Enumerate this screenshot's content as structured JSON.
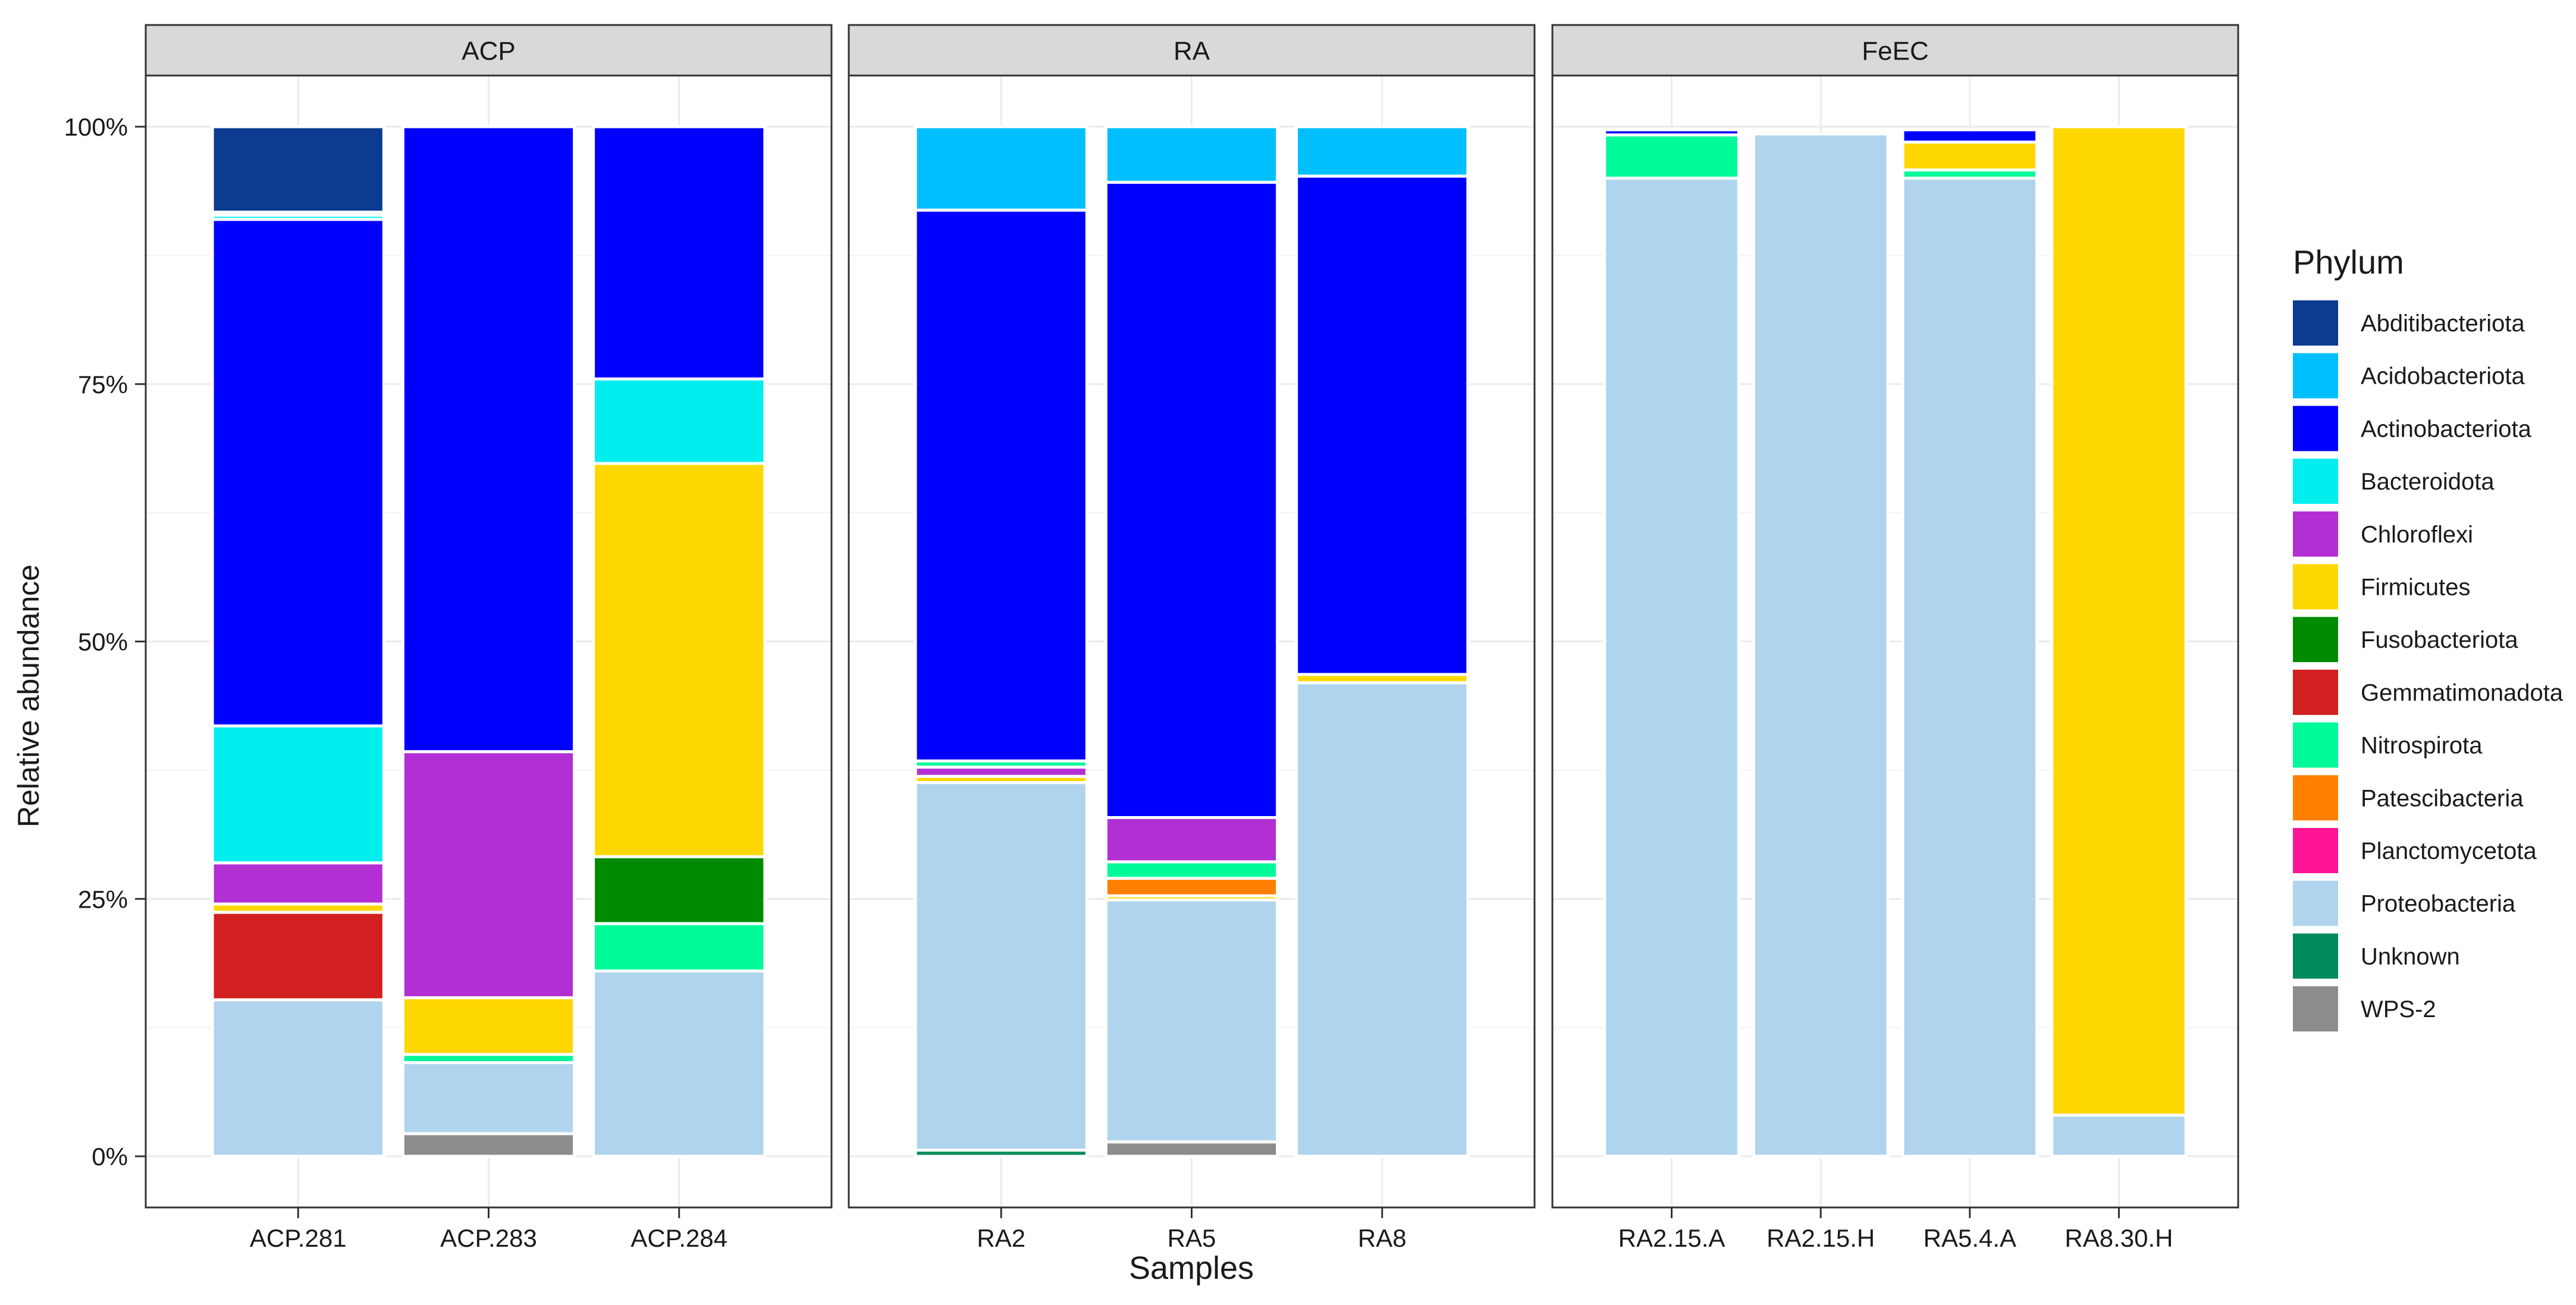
{
  "chart_data": {
    "type": "bar",
    "stacked": true,
    "xlabel": "Samples",
    "ylabel": "Relative abundance",
    "ylim": [
      0,
      1
    ],
    "yticks": [
      0,
      0.25,
      0.5,
      0.75,
      1.0
    ],
    "ytick_labels": [
      "0%",
      "25%",
      "50%",
      "75%",
      "100%"
    ],
    "legend": {
      "title": "Phylum",
      "placement": "right",
      "entries": [
        {
          "name": "Abditibacteriota",
          "color": "#0B3C8F"
        },
        {
          "name": "Acidobacteriota",
          "color": "#00BFFF"
        },
        {
          "name": "Actinobacteriota",
          "color": "#0000FF"
        },
        {
          "name": "Bacteroidota",
          "color": "#00EEEE"
        },
        {
          "name": "Chloroflexi",
          "color": "#B22FD3"
        },
        {
          "name": "Firmicutes",
          "color": "#FFD700"
        },
        {
          "name": "Fusobacteriota",
          "color": "#008B00"
        },
        {
          "name": "Gemmatimonadota",
          "color": "#D21F1F"
        },
        {
          "name": "Nitrospirota",
          "color": "#00FA9A"
        },
        {
          "name": "Patescibacteria",
          "color": "#FF7F00"
        },
        {
          "name": "Planctomycetota",
          "color": "#FF1493"
        },
        {
          "name": "Proteobacteria",
          "color": "#B0D4EE"
        },
        {
          "name": "Unknown",
          "color": "#008B5A"
        },
        {
          "name": "WPS-2",
          "color": "#8C8C8C"
        }
      ]
    },
    "panels": [
      {
        "name": "ACP",
        "samples": [
          {
            "name": "ACP.281",
            "stack": [
              {
                "phylum": "Proteobacteria",
                "value": 0.152
              },
              {
                "phylum": "Gemmatimonadota",
                "value": 0.085
              },
              {
                "phylum": "Firmicutes",
                "value": 0.008
              },
              {
                "phylum": "Chloroflexi",
                "value": 0.04
              },
              {
                "phylum": "Bacteroidota",
                "value": 0.133
              },
              {
                "phylum": "Actinobacteriota",
                "value": 0.492
              },
              {
                "phylum": "Bacteroidota",
                "value": 0.004
              },
              {
                "phylum": "Nitrospirota",
                "value": 0.003
              },
              {
                "phylum": "Abditibacteriota",
                "value": 0.083
              }
            ]
          },
          {
            "name": "ACP.283",
            "stack": [
              {
                "phylum": "WPS-2",
                "value": 0.022
              },
              {
                "phylum": "Proteobacteria",
                "value": 0.069
              },
              {
                "phylum": "Nitrospirota",
                "value": 0.008
              },
              {
                "phylum": "Firmicutes",
                "value": 0.055
              },
              {
                "phylum": "Chloroflexi",
                "value": 0.239
              },
              {
                "phylum": "Actinobacteriota",
                "value": 0.607
              }
            ]
          },
          {
            "name": "ACP.284",
            "stack": [
              {
                "phylum": "Proteobacteria",
                "value": 0.18
              },
              {
                "phylum": "Nitrospirota",
                "value": 0.046
              },
              {
                "phylum": "Fusobacteriota",
                "value": 0.065
              },
              {
                "phylum": "Firmicutes",
                "value": 0.382
              },
              {
                "phylum": "Bacteroidota",
                "value": 0.082
              },
              {
                "phylum": "Actinobacteriota",
                "value": 0.245
              }
            ]
          }
        ]
      },
      {
        "name": "RA",
        "samples": [
          {
            "name": "RA2",
            "stack": [
              {
                "phylum": "Unknown",
                "value": 0.006
              },
              {
                "phylum": "Proteobacteria",
                "value": 0.357
              },
              {
                "phylum": "Firmicutes",
                "value": 0.006
              },
              {
                "phylum": "Chloroflexi",
                "value": 0.009
              },
              {
                "phylum": "Nitrospirota",
                "value": 0.006
              },
              {
                "phylum": "Actinobacteriota",
                "value": 0.535
              },
              {
                "phylum": "Acidobacteriota",
                "value": 0.081
              }
            ]
          },
          {
            "name": "RA5",
            "stack": [
              {
                "phylum": "WPS-2",
                "value": 0.014
              },
              {
                "phylum": "Proteobacteria",
                "value": 0.235
              },
              {
                "phylum": "Firmicutes",
                "value": 0.004
              },
              {
                "phylum": "Patescibacteria",
                "value": 0.017
              },
              {
                "phylum": "Nitrospirota",
                "value": 0.016
              },
              {
                "phylum": "Chloroflexi",
                "value": 0.043
              },
              {
                "phylum": "Actinobacteriota",
                "value": 0.617
              },
              {
                "phylum": "Acidobacteriota",
                "value": 0.054
              }
            ]
          },
          {
            "name": "RA8",
            "stack": [
              {
                "phylum": "Proteobacteria",
                "value": 0.46
              },
              {
                "phylum": "Firmicutes",
                "value": 0.008
              },
              {
                "phylum": "Actinobacteriota",
                "value": 0.484
              },
              {
                "phylum": "Acidobacteriota",
                "value": 0.048
              }
            ]
          }
        ]
      },
      {
        "name": "FeEC",
        "samples": [
          {
            "name": "RA2.15.A",
            "stack": [
              {
                "phylum": "Proteobacteria",
                "value": 0.95
              },
              {
                "phylum": "Nitrospirota",
                "value": 0.042
              },
              {
                "phylum": "Actinobacteriota",
                "value": 0.005
              }
            ]
          },
          {
            "name": "RA2.15.H",
            "stack": [
              {
                "phylum": "Proteobacteria",
                "value": 0.993
              }
            ]
          },
          {
            "name": "RA5.4.A",
            "stack": [
              {
                "phylum": "Proteobacteria",
                "value": 0.95
              },
              {
                "phylum": "Nitrospirota",
                "value": 0.008
              },
              {
                "phylum": "Firmicutes",
                "value": 0.027
              },
              {
                "phylum": "Actinobacteriota",
                "value": 0.012
              }
            ]
          },
          {
            "name": "RA8.30.H",
            "stack": [
              {
                "phylum": "Proteobacteria",
                "value": 0.04
              },
              {
                "phylum": "Firmicutes",
                "value": 0.96
              }
            ]
          }
        ]
      }
    ]
  }
}
